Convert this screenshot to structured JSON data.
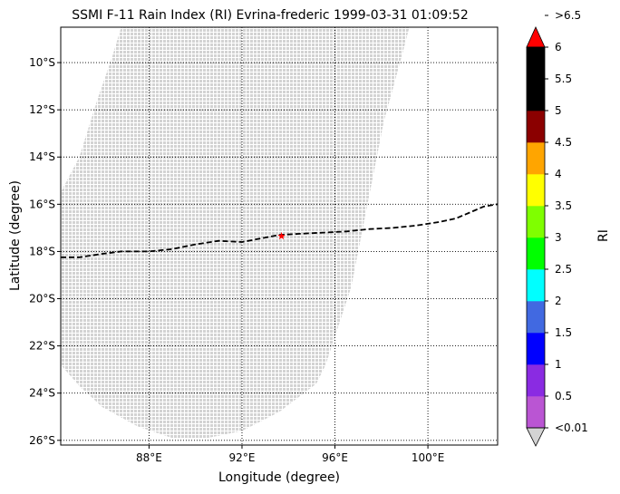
{
  "chart_data": {
    "type": "scatter",
    "title": "SSMI F-11 Rain Index (RI) Evrina-frederic 1999-03-31 01:09:52",
    "xlabel": "Longitude (degree)",
    "ylabel": "Latitude (degree)",
    "xlim": [
      84.2,
      103.0
    ],
    "ylim": [
      -26.2,
      -8.5
    ],
    "grid": true,
    "grid_style": "dotted",
    "x_ticks": [
      {
        "value": 88,
        "label": "88°E"
      },
      {
        "value": 92,
        "label": "92°E"
      },
      {
        "value": 96,
        "label": "96°E"
      },
      {
        "value": 100,
        "label": "100°E"
      }
    ],
    "y_ticks": [
      {
        "value": -10,
        "label": "10°S"
      },
      {
        "value": -12,
        "label": "12°S"
      },
      {
        "value": -14,
        "label": "14°S"
      },
      {
        "value": -16,
        "label": "16°S"
      },
      {
        "value": -18,
        "label": "18°S"
      },
      {
        "value": -20,
        "label": "20°S"
      },
      {
        "value": -22,
        "label": "22°S"
      },
      {
        "value": -24,
        "label": "24°S"
      },
      {
        "value": -26,
        "label": "26°S"
      }
    ],
    "swath": {
      "color": "#d3d3d3",
      "category": "<0.01",
      "outline": [
        [
          86.8,
          -8.5
        ],
        [
          99.2,
          -8.5
        ],
        [
          98.8,
          -10.0
        ],
        [
          98.1,
          -12.5
        ],
        [
          97.6,
          -15.0
        ],
        [
          97.1,
          -17.5
        ],
        [
          96.7,
          -19.5
        ],
        [
          96.2,
          -21.0
        ],
        [
          95.6,
          -22.8
        ],
        [
          95.2,
          -23.6
        ],
        [
          93.6,
          -24.8
        ],
        [
          92.0,
          -25.6
        ],
        [
          90.5,
          -25.9
        ],
        [
          89.0,
          -25.9
        ],
        [
          87.5,
          -25.4
        ],
        [
          86.0,
          -24.6
        ],
        [
          85.0,
          -23.7
        ],
        [
          84.2,
          -22.8
        ],
        [
          84.2,
          -15.5
        ],
        [
          85.0,
          -14.0
        ],
        [
          85.8,
          -11.5
        ],
        [
          86.4,
          -9.8
        ]
      ]
    },
    "track": {
      "color": "#000000",
      "style": "dashed",
      "points": [
        [
          84.2,
          -18.25
        ],
        [
          85.0,
          -18.25
        ],
        [
          86.0,
          -18.1
        ],
        [
          86.8,
          -18.0
        ],
        [
          88.0,
          -18.0
        ],
        [
          89.0,
          -17.9
        ],
        [
          90.0,
          -17.7
        ],
        [
          91.0,
          -17.55
        ],
        [
          92.0,
          -17.6
        ],
        [
          92.8,
          -17.45
        ],
        [
          93.6,
          -17.3
        ],
        [
          94.5,
          -17.25
        ],
        [
          95.5,
          -17.2
        ],
        [
          96.5,
          -17.15
        ],
        [
          97.5,
          -17.05
        ],
        [
          98.5,
          -17.0
        ],
        [
          99.5,
          -16.9
        ],
        [
          100.5,
          -16.75
        ],
        [
          101.2,
          -16.6
        ],
        [
          101.8,
          -16.35
        ],
        [
          102.4,
          -16.1
        ],
        [
          103.0,
          -16.0
        ]
      ]
    },
    "center_marker": {
      "x": 93.7,
      "y": -17.35,
      "color": "#ff0000",
      "shape": "star"
    },
    "colorbar": {
      "label": "RI",
      "extend": "both",
      "under_color": "#d3d3d3",
      "over_color": "#ff0000",
      "colors": [
        "#ba55d3",
        "#8a2be2",
        "#0000ff",
        "#4169e1",
        "#00ffff",
        "#00ff00",
        "#7fff00",
        "#ffff00",
        "#ffa500",
        "#8b0000",
        "#000000",
        "#000000"
      ],
      "boundaries": [
        "<0.01",
        "0.5",
        "1",
        "1.5",
        "2",
        "2.5",
        "3",
        "3.5",
        "4",
        "4.5",
        "5",
        "5.5",
        "6",
        ">6.5"
      ]
    }
  }
}
